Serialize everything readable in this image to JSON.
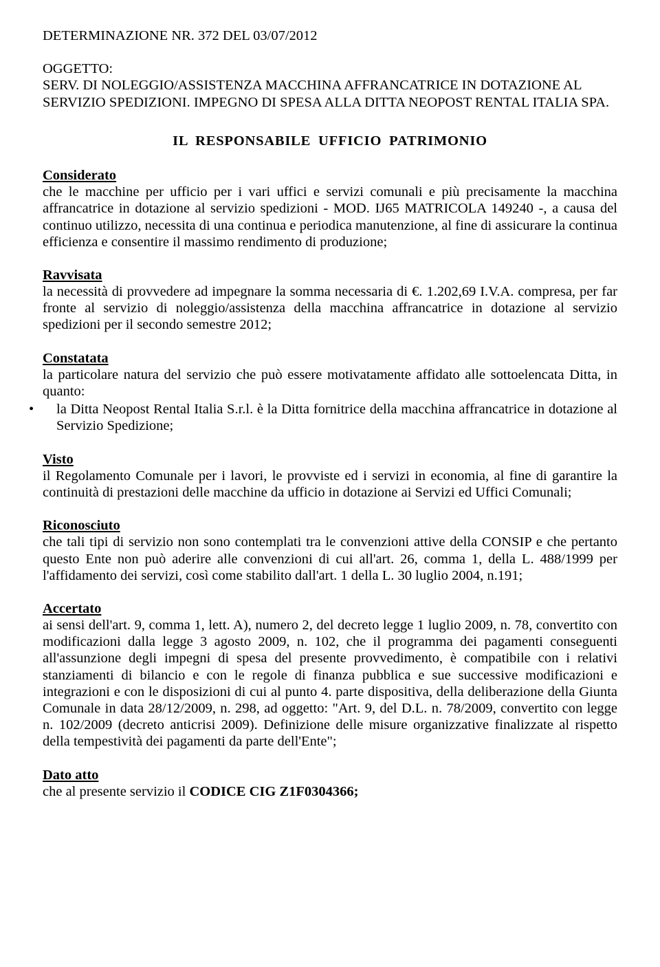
{
  "header": "DETERMINAZIONE NR. 372 DEL 03/07/2012",
  "oggetto_label": "OGGETTO:",
  "oggetto_text": "SERV. DI NOLEGGIO/ASSISTENZA MACCHINA AFFRANCATRICE IN DOTAZIONE AL SERVIZIO SPEDIZIONI. IMPEGNO DI SPESA ALLA DITTA NEOPOST RENTAL ITALIA SPA.",
  "title": "IL  RESPONSABILE  UFFICIO  PATRIMONIO",
  "sections": {
    "considerato": {
      "heading": "Considerato",
      "body": "che le macchine per ufficio per i vari uffici e servizi comunali e più precisamente la macchina affrancatrice in dotazione al servizio spedizioni - MOD. IJ65 MATRICOLA 149240 -, a causa del continuo utilizzo, necessita di una continua e periodica manutenzione, al fine di assicurare la continua efficienza e consentire il massimo rendimento di produzione;"
    },
    "ravvisata": {
      "heading": "Ravvisata",
      "body": "la necessità di provvedere ad impegnare la somma necessaria di €. 1.202,69 I.V.A. compresa, per far fronte al servizio di noleggio/assistenza della macchina affrancatrice in dotazione al servizio spedizioni per il secondo semestre 2012;"
    },
    "constatata": {
      "heading": "Constatata",
      "body": "la particolare natura del servizio che può essere motivatamente affidato alle sottoelencata Ditta, in quanto:",
      "bullet": "la Ditta Neopost Rental Italia S.r.l. è la Ditta fornitrice della macchina affrancatrice in dotazione al Servizio Spedizione;"
    },
    "visto": {
      "heading": "Visto",
      "body": "il Regolamento Comunale per i lavori, le provviste ed i servizi in economia, al fine di garantire la continuità di prestazioni delle macchine da ufficio in dotazione ai Servizi ed Uffici Comunali;"
    },
    "riconosciuto": {
      "heading": "Riconosciuto",
      "body": "che tali tipi di servizio non sono contemplati tra le convenzioni attive della CONSIP e che pertanto questo Ente non può aderire alle convenzioni di cui all'art. 26, comma 1, della L. 488/1999 per l'affidamento dei servizi, così come stabilito dall'art. 1 della L. 30 luglio 2004, n.191;"
    },
    "accertato": {
      "heading": "Accertato",
      "body": "ai sensi dell'art. 9, comma 1, lett. A), numero 2, del decreto legge 1 luglio 2009, n. 78, convertito con modificazioni dalla legge 3 agosto 2009, n. 102, che il programma dei pagamenti conseguenti all'assunzione degli impegni di spesa del presente provvedimento, è compatibile con i relativi stanziamenti di bilancio e con le regole di finanza pubblica e sue successive modificazioni e integrazioni e con le disposizioni di cui al punto 4. parte dispositiva, della deliberazione della Giunta Comunale in data 28/12/2009, n. 298, ad oggetto: \"Art. 9, del D.L. n. 78/2009, convertito con legge n. 102/2009 (decreto anticrisi 2009). Definizione delle misure organizzative finalizzate al rispetto della tempestività dei pagamenti da parte dell'Ente\";"
    },
    "datoatto": {
      "heading": "Dato atto",
      "body_prefix": "che al presente servizio il ",
      "body_bold": "CODICE CIG  Z1F0304366;"
    }
  }
}
